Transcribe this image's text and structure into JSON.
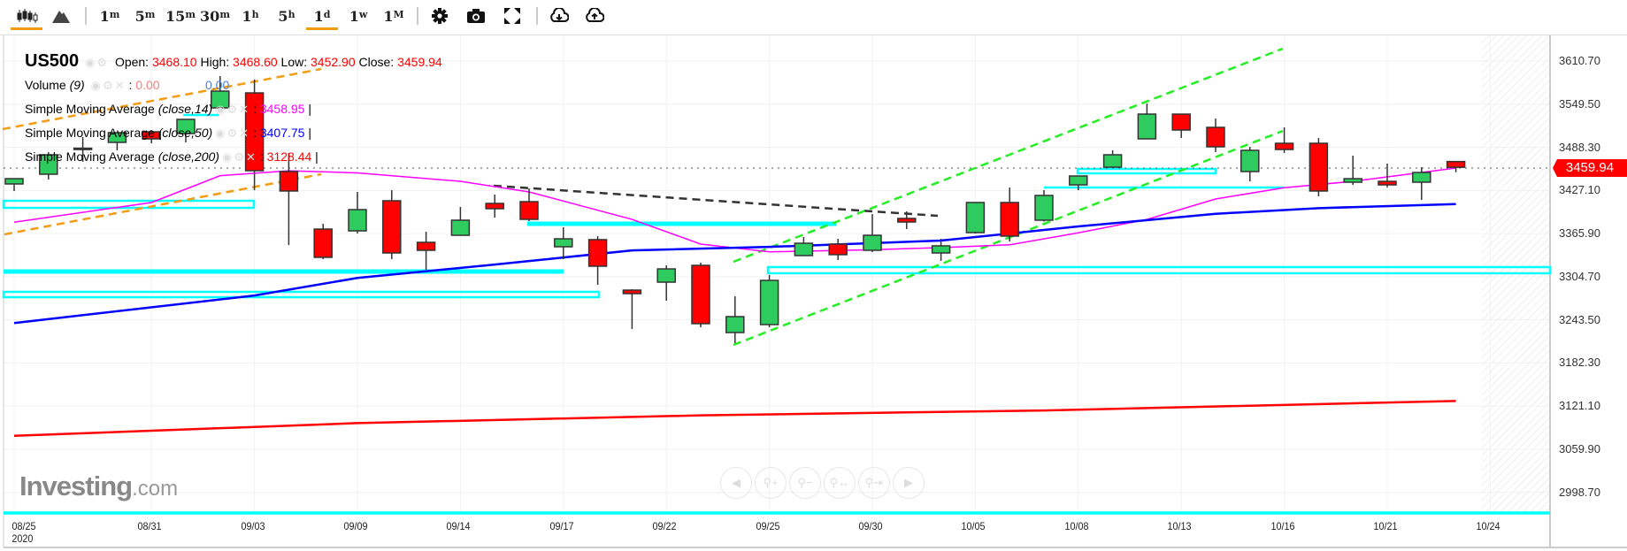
{
  "toolbar": {
    "chart_types": [
      {
        "name": "candlestick",
        "active": true
      },
      {
        "name": "area",
        "active": false
      }
    ],
    "timeframes": [
      {
        "num": "1",
        "unit": "m",
        "active": false
      },
      {
        "num": "5",
        "unit": "m",
        "active": false
      },
      {
        "num": "15",
        "unit": "m",
        "active": false
      },
      {
        "num": "30",
        "unit": "m",
        "active": false
      },
      {
        "num": "1",
        "unit": "h",
        "active": false
      },
      {
        "num": "5",
        "unit": "h",
        "active": false
      },
      {
        "num": "1",
        "unit": "d",
        "active": true
      },
      {
        "num": "1",
        "unit": "w",
        "active": false
      },
      {
        "num": "1",
        "unit": "M",
        "active": false
      }
    ],
    "tools": [
      "gear-icon",
      "camera-icon",
      "fullscreen-icon",
      "download-icon",
      "upload-icon"
    ]
  },
  "legend": {
    "symbol": "US500",
    "open_label": "Open:",
    "open": "3468.10",
    "high_label": "High:",
    "high": "3468.60",
    "low_label": "Low:",
    "low": "3452.90",
    "close_label": "Close:",
    "close": "3459.94",
    "volume_label": "Volume",
    "volume_param": "(9)",
    "volume_value": "0.00",
    "volume_bar_value": "0.00",
    "sma": [
      {
        "label": "Simple Moving Average",
        "params": "(close,14)",
        "value": "3458.95",
        "color": "#ff00ff"
      },
      {
        "label": "Simple Moving Average",
        "params": "(close,50)",
        "value": "3407.75",
        "color": "#0000ff"
      },
      {
        "label": "Simple Moving Average",
        "params": "(close,200)",
        "value": "3128.44",
        "color": "#ff0000"
      }
    ]
  },
  "current_price": "3459.94",
  "logo": {
    "brand": "Investing",
    "suffix": ".com"
  },
  "colors": {
    "up": "#2ecc5f",
    "down": "#ff0000",
    "accent": "#f39c12",
    "drawing": "#00ffff"
  },
  "chart_data": {
    "type": "candlestick",
    "title": "US500",
    "ylim": [
      2998.7,
      3610.7
    ],
    "y_ticks": [
      "3610.70",
      "3549.50",
      "3488.30",
      "3427.10",
      "3365.90",
      "3304.70",
      "3243.50",
      "3182.30",
      "3121.10",
      "3059.90",
      "2998.70"
    ],
    "y_tick_values": [
      3610.7,
      3549.5,
      3488.3,
      3427.1,
      3365.9,
      3304.7,
      3243.5,
      3182.3,
      3121.1,
      3059.9,
      2998.7
    ],
    "x_labels": [
      {
        "i": 0,
        "t": "08/25",
        "year": "2020"
      },
      {
        "i": 4,
        "t": "08/31"
      },
      {
        "i": 7,
        "t": "09/03"
      },
      {
        "i": 10,
        "t": "09/09"
      },
      {
        "i": 13,
        "t": "09/14"
      },
      {
        "i": 16,
        "t": "09/17"
      },
      {
        "i": 19,
        "t": "09/22"
      },
      {
        "i": 22,
        "t": "09/25"
      },
      {
        "i": 25,
        "t": "09/30"
      },
      {
        "i": 28,
        "t": "10/05"
      },
      {
        "i": 31,
        "t": "10/08"
      },
      {
        "i": 34,
        "t": "10/13"
      },
      {
        "i": 37,
        "t": "10/16"
      },
      {
        "i": 40,
        "t": "10/21"
      },
      {
        "i": 43,
        "t": "10/24"
      }
    ],
    "ohlc": [
      [
        3436.3,
        3444.0,
        3426.3,
        3443.8
      ],
      [
        3450.1,
        3481.5,
        3442.6,
        3477.7
      ],
      [
        3486.0,
        3502.8,
        3467.7,
        3487.0
      ],
      [
        3495.3,
        3509.5,
        3484.0,
        3509.1
      ],
      [
        3510.3,
        3512.8,
        3494.0,
        3500.3
      ],
      [
        3507.8,
        3528.0,
        3495.3,
        3527.9
      ],
      [
        3544.2,
        3589.4,
        3537.9,
        3568.0
      ],
      [
        3565.5,
        3584.4,
        3427.5,
        3455.1
      ],
      [
        3453.9,
        3480.2,
        3349.7,
        3426.3
      ],
      [
        3372.3,
        3379.8,
        3329.7,
        3332.2
      ],
      [
        3369.8,
        3425.0,
        3366.0,
        3399.9
      ],
      [
        3412.5,
        3427.5,
        3329.7,
        3338.4
      ],
      [
        3353.5,
        3368.5,
        3314.6,
        3342.2
      ],
      [
        3363.5,
        3403.7,
        3363.0,
        3384.9
      ],
      [
        3408.7,
        3421.2,
        3388.6,
        3401.2
      ],
      [
        3411.2,
        3430.0,
        3383.6,
        3386.1
      ],
      [
        3347.2,
        3374.8,
        3329.7,
        3358.5
      ],
      [
        3357.3,
        3362.3,
        3293.2,
        3319.6
      ],
      [
        3285.7,
        3287.0,
        3230.5,
        3280.7
      ],
      [
        3297.0,
        3320.8,
        3270.7,
        3315.8
      ],
      [
        3320.8,
        3324.6,
        3233.0,
        3238.1
      ],
      [
        3225.5,
        3276.9,
        3210.5,
        3248.1
      ],
      [
        3236.8,
        3307.1,
        3233.0,
        3299.5
      ],
      [
        3334.7,
        3361.0,
        3334.7,
        3352.2
      ],
      [
        3351.0,
        3358.5,
        3328.4,
        3336.0
      ],
      [
        3342.2,
        3393.6,
        3339.7,
        3363.5
      ],
      [
        3387.4,
        3397.4,
        3372.3,
        3382.3
      ],
      [
        3338.4,
        3358.5,
        3327.2,
        3348.5
      ],
      [
        3367.3,
        3410.0,
        3366.0,
        3410.0
      ],
      [
        3410.0,
        3431.3,
        3354.7,
        3362.3
      ],
      [
        3384.9,
        3427.5,
        3383.0,
        3420.0
      ],
      [
        3435.0,
        3447.6,
        3427.5,
        3447.6
      ],
      [
        3460.1,
        3484.0,
        3460.0,
        3477.7
      ],
      [
        3500.3,
        3550.5,
        3500.0,
        3535.4
      ],
      [
        3535.4,
        3535.4,
        3501.5,
        3512.8
      ],
      [
        3516.6,
        3529.1,
        3481.5,
        3489.0
      ],
      [
        3453.9,
        3489.0,
        3440.0,
        3484.0
      ],
      [
        3494.0,
        3516.6,
        3480.2,
        3485.2
      ],
      [
        3494.0,
        3501.5,
        3418.7,
        3426.3
      ],
      [
        3438.8,
        3476.5,
        3435.0,
        3443.8
      ],
      [
        3440.0,
        3465.2,
        3431.3,
        3435.0
      ],
      [
        3438.8,
        3460.1,
        3413.7,
        3452.6
      ],
      [
        3468.1,
        3468.6,
        3452.9,
        3459.94
      ]
    ],
    "series": [
      {
        "name": "SMA 14",
        "color": "#ff00ff",
        "points": [
          [
            0,
            3382
          ],
          [
            4,
            3410
          ],
          [
            6,
            3448
          ],
          [
            8,
            3455
          ],
          [
            10,
            3452
          ],
          [
            13,
            3440
          ],
          [
            15,
            3425
          ],
          [
            18,
            3386
          ],
          [
            20,
            3351
          ],
          [
            22,
            3340
          ],
          [
            25,
            3343
          ],
          [
            27,
            3346
          ],
          [
            29,
            3350
          ],
          [
            31,
            3367
          ],
          [
            33,
            3386
          ],
          [
            35,
            3415
          ],
          [
            37,
            3431
          ],
          [
            39,
            3440
          ],
          [
            42,
            3458.95
          ]
        ]
      },
      {
        "name": "SMA 50",
        "color": "#0000ff",
        "points": [
          [
            0,
            3239
          ],
          [
            7,
            3278
          ],
          [
            10,
            3303
          ],
          [
            14,
            3322
          ],
          [
            18,
            3342
          ],
          [
            22,
            3347
          ],
          [
            27,
            3356
          ],
          [
            31,
            3376
          ],
          [
            35,
            3394
          ],
          [
            38,
            3402
          ],
          [
            42,
            3407.75
          ]
        ]
      },
      {
        "name": "SMA 200",
        "color": "#ff0000",
        "points": [
          [
            0,
            3079
          ],
          [
            10,
            3097
          ],
          [
            20,
            3108
          ],
          [
            30,
            3115
          ],
          [
            42,
            3128.44
          ]
        ]
      }
    ]
  }
}
